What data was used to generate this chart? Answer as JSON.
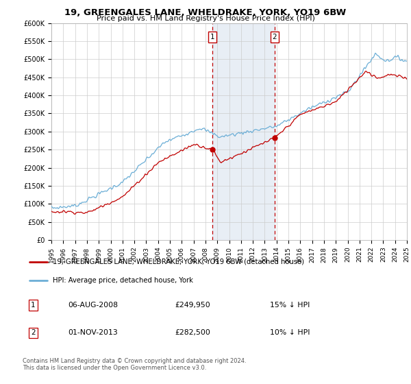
{
  "title": "19, GREENGALES LANE, WHELDRAKE, YORK, YO19 6BW",
  "subtitle": "Price paid vs. HM Land Registry's House Price Index (HPI)",
  "ylim": [
    0,
    600000
  ],
  "yticks": [
    0,
    50000,
    100000,
    150000,
    200000,
    250000,
    300000,
    350000,
    400000,
    450000,
    500000,
    550000,
    600000
  ],
  "ytick_labels": [
    "£0",
    "£50K",
    "£100K",
    "£150K",
    "£200K",
    "£250K",
    "£300K",
    "£350K",
    "£400K",
    "£450K",
    "£500K",
    "£550K",
    "£600K"
  ],
  "hpi_color": "#6baed6",
  "price_color": "#c00000",
  "marker1_year": 2008.58,
  "marker2_year": 2013.83,
  "marker1_price": 249950,
  "marker2_price": 282500,
  "legend_red_label": "19, GREENGALES LANE, WHELDRAKE, YORK, YO19 6BW (detached house)",
  "legend_blue_label": "HPI: Average price, detached house, York",
  "note1_date": "06-AUG-2008",
  "note1_price": "£249,950",
  "note1_pct": "15% ↓ HPI",
  "note2_date": "01-NOV-2013",
  "note2_price": "£282,500",
  "note2_pct": "10% ↓ HPI",
  "footer": "Contains HM Land Registry data © Crown copyright and database right 2024.\nThis data is licensed under the Open Government Licence v3.0.",
  "shade_color": "#dce6f1",
  "shade_alpha": 0.65,
  "background_color": "#ffffff"
}
